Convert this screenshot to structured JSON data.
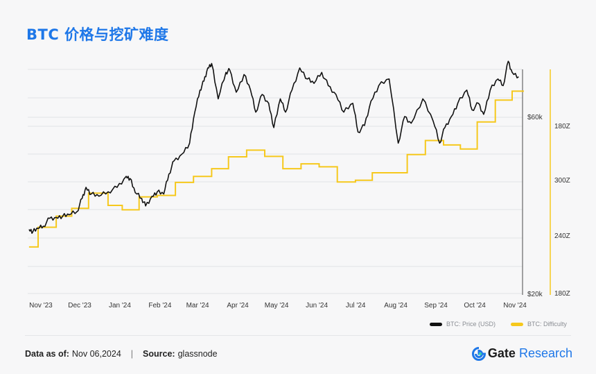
{
  "title": "BTC 价格与挖矿难度",
  "legend": {
    "price": "BTC: Price (USD)",
    "difficulty": "BTC: Difficulty"
  },
  "footer": {
    "data_as_of_label": "Data as of:",
    "data_as_of_value": "Nov 06,2024",
    "separator": "|",
    "source_label": "Source:",
    "source_value": "glassnode"
  },
  "brand": {
    "name": "Gate",
    "suffix": "Research"
  },
  "colors": {
    "price": "#111111",
    "difficulty": "#f6c81c",
    "brand": "#1e77e8"
  },
  "chart_data": {
    "type": "line",
    "x_tick_labels": [
      "Nov '23",
      "Dec '23",
      "Jan '24",
      "Feb '24",
      "Mar '24",
      "Apr '24",
      "May '24",
      "Jun '24",
      "Jul '24",
      "Aug '24",
      "Sep '24",
      "Oct '24",
      "Nov '24"
    ],
    "price_axis": {
      "ticks": [
        "$60k",
        "$20k"
      ]
    },
    "difficulty_axis": {
      "ticks": [
        "180Z",
        "300Z",
        "240Z",
        "180Z"
      ]
    },
    "series": [
      {
        "name": "BTC: Price (USD)",
        "x": [
          "2023-10-25",
          "2023-10-28",
          "2023-11-01",
          "2023-11-05",
          "2023-11-10",
          "2023-11-15",
          "2023-11-20",
          "2023-11-25",
          "2023-12-01",
          "2023-12-05",
          "2023-12-08",
          "2023-12-12",
          "2023-12-18",
          "2023-12-25",
          "2024-01-01",
          "2024-01-08",
          "2024-01-11",
          "2024-01-15",
          "2024-01-20",
          "2024-01-23",
          "2024-01-28",
          "2024-02-01",
          "2024-02-06",
          "2024-02-10",
          "2024-02-14",
          "2024-02-20",
          "2024-02-26",
          "2024-03-01",
          "2024-03-05",
          "2024-03-08",
          "2024-03-11",
          "2024-03-14",
          "2024-03-19",
          "2024-03-25",
          "2024-03-28",
          "2024-04-02",
          "2024-04-08",
          "2024-04-13",
          "2024-04-17",
          "2024-04-22",
          "2024-04-27",
          "2024-05-01",
          "2024-05-06",
          "2024-05-10",
          "2024-05-15",
          "2024-05-21",
          "2024-05-27",
          "2024-06-01",
          "2024-06-07",
          "2024-06-12",
          "2024-06-18",
          "2024-06-24",
          "2024-07-01",
          "2024-07-05",
          "2024-07-10",
          "2024-07-15",
          "2024-07-21",
          "2024-07-29",
          "2024-08-05",
          "2024-08-10",
          "2024-08-15",
          "2024-08-24",
          "2024-09-01",
          "2024-09-06",
          "2024-09-10",
          "2024-09-15",
          "2024-09-20",
          "2024-09-27",
          "2024-10-01",
          "2024-10-06",
          "2024-10-10",
          "2024-10-15",
          "2024-10-21",
          "2024-10-25",
          "2024-10-29",
          "2024-11-01",
          "2024-11-06"
        ],
        "y": [
          34500,
          34000,
          34700,
          35200,
          37000,
          37200,
          37500,
          37800,
          38500,
          41500,
          44000,
          42500,
          42000,
          43000,
          44000,
          46500,
          46000,
          42800,
          41500,
          39800,
          42000,
          43000,
          42500,
          47000,
          50000,
          51500,
          54000,
          61000,
          66000,
          68000,
          71000,
          72000,
          64000,
          70000,
          70500,
          65500,
          69500,
          66000,
          61000,
          65000,
          63000,
          57500,
          64000,
          61000,
          66000,
          71000,
          68500,
          67500,
          70000,
          67000,
          65000,
          61000,
          63000,
          56500,
          58000,
          63500,
          67000,
          68500,
          54000,
          60000,
          58500,
          64000,
          59000,
          54000,
          57500,
          60000,
          63000,
          66000,
          61500,
          63000,
          60500,
          66000,
          68500,
          67000,
          72500,
          70000,
          69000
        ]
      },
      {
        "name": "BTC: Difficulty",
        "x": [
          "2023-10-25",
          "2023-11-01",
          "2023-11-15",
          "2023-11-27",
          "2023-12-10",
          "2023-12-25",
          "2024-01-05",
          "2024-01-18",
          "2024-02-01",
          "2024-02-15",
          "2024-02-29",
          "2024-03-14",
          "2024-03-27",
          "2024-04-10",
          "2024-04-24",
          "2024-05-08",
          "2024-05-22",
          "2024-06-05",
          "2024-06-19",
          "2024-07-03",
          "2024-07-16",
          "2024-07-29",
          "2024-08-12",
          "2024-08-26",
          "2024-09-09",
          "2024-09-22",
          "2024-10-05",
          "2024-10-19",
          "2024-11-01"
        ],
        "y": [
          62.0,
          67.3,
          70.3,
          72.4,
          76.5,
          73.2,
          72.0,
          75.5,
          75.9,
          79.4,
          81.0,
          83.1,
          86.3,
          88.1,
          86.4,
          83.1,
          84.4,
          83.6,
          79.5,
          80.0,
          82.0,
          82.0,
          86.9,
          90.7,
          89.5,
          88.4,
          95.7,
          101.6,
          104.0
        ]
      }
    ]
  }
}
